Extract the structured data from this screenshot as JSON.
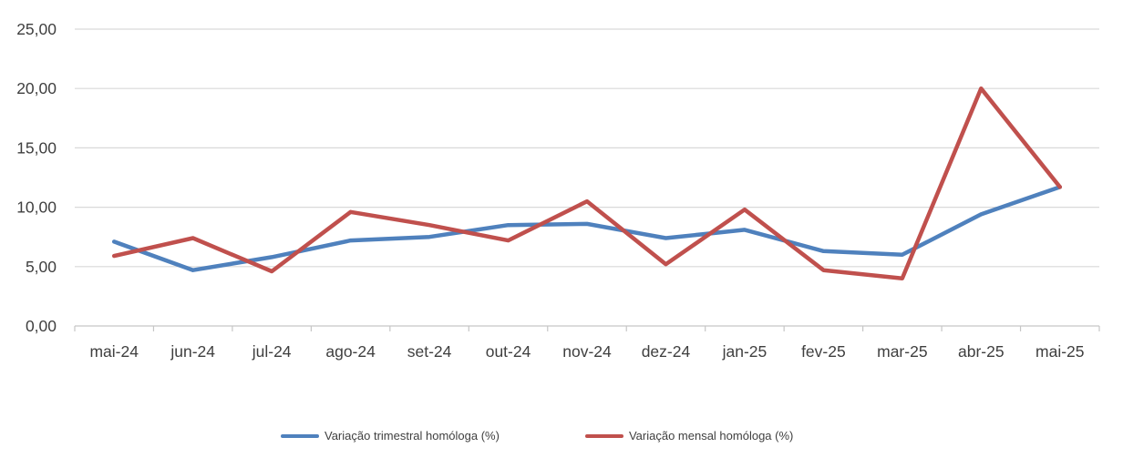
{
  "chart_data": {
    "type": "line",
    "title": "",
    "xlabel": "",
    "ylabel": "",
    "categories": [
      "mai-24",
      "jun-24",
      "jul-24",
      "ago-24",
      "set-24",
      "out-24",
      "nov-24",
      "dez-24",
      "jan-25",
      "fev-25",
      "mar-25",
      "abr-25",
      "mai-25"
    ],
    "series": [
      {
        "name": "Variação trimestral homóloga (%)",
        "color": "#4F81BD",
        "values": [
          7.1,
          4.7,
          5.8,
          7.2,
          7.5,
          8.5,
          8.6,
          7.4,
          8.1,
          6.3,
          6.0,
          9.4,
          11.7
        ]
      },
      {
        "name": "Variação mensal homóloga (%)",
        "color": "#C0504D",
        "values": [
          5.9,
          7.4,
          4.6,
          9.6,
          8.5,
          7.2,
          10.5,
          5.2,
          9.8,
          4.7,
          4.0,
          20.0,
          11.7
        ]
      }
    ],
    "ylim": [
      0,
      25
    ],
    "ytick_step": 5,
    "ytick_labels": [
      "0,00",
      "5,00",
      "10,00",
      "15,00",
      "20,00",
      "25,00"
    ],
    "grid": true,
    "legend_position": "bottom"
  },
  "colors": {
    "gridline": "#D9D9D9",
    "axis_line": "#C6C6C6",
    "tick_mark": "#C6C6C6",
    "tick_label": "#3F3F3F",
    "background": "#FFFFFF"
  }
}
